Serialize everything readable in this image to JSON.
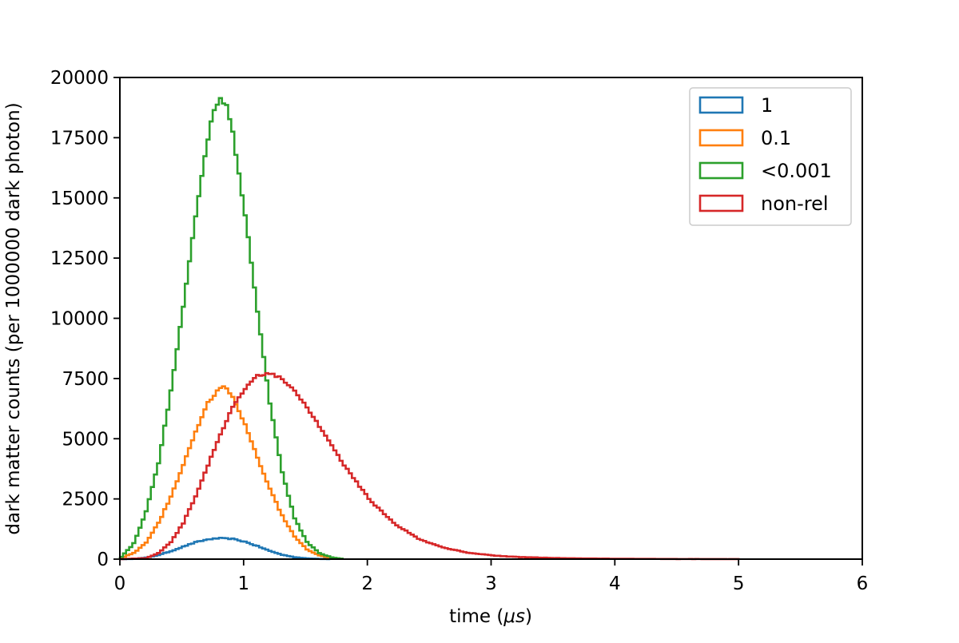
{
  "chart_data": {
    "type": "line",
    "title": "",
    "xlabel": "time (",
    "xlabel_unit": "μs",
    "xlabel_close": ")",
    "ylabel": "dark matter counts (per 1000000 dark photon)",
    "xlim": [
      0,
      6
    ],
    "ylim": [
      0,
      20000
    ],
    "xticks": [
      0,
      1,
      2,
      3,
      4,
      5,
      6
    ],
    "yticks": [
      0,
      2500,
      5000,
      7500,
      10000,
      12500,
      15000,
      17500,
      20000
    ],
    "grid": false,
    "legend_position": "top-right",
    "series": [
      {
        "name": "1",
        "color": "#1f77b4",
        "x": [
          0.0,
          0.1,
          0.2,
          0.3,
          0.4,
          0.5,
          0.6,
          0.7,
          0.8,
          0.9,
          1.0,
          1.1,
          1.2,
          1.3,
          1.4,
          1.5,
          1.6,
          1.7
        ],
        "y": [
          0,
          10,
          60,
          170,
          330,
          520,
          700,
          820,
          870,
          840,
          720,
          540,
          340,
          180,
          80,
          30,
          10,
          0
        ]
      },
      {
        "name": "0.1",
        "color": "#ff7f0e",
        "x": [
          0.0,
          0.1,
          0.2,
          0.3,
          0.4,
          0.5,
          0.6,
          0.7,
          0.8,
          0.85,
          0.9,
          1.0,
          1.1,
          1.2,
          1.3,
          1.4,
          1.5,
          1.6,
          1.7,
          1.8
        ],
        "y": [
          60,
          250,
          700,
          1500,
          2600,
          3900,
          5300,
          6500,
          7150,
          7100,
          6700,
          5600,
          4200,
          2900,
          1800,
          950,
          400,
          150,
          40,
          0
        ]
      },
      {
        "name": "<0.001",
        "color": "#2ca02c",
        "x": [
          0.0,
          0.1,
          0.2,
          0.3,
          0.4,
          0.5,
          0.6,
          0.7,
          0.75,
          0.8,
          0.85,
          0.9,
          1.0,
          1.1,
          1.2,
          1.3,
          1.4,
          1.5,
          1.6,
          1.7,
          1.8
        ],
        "y": [
          100,
          650,
          2000,
          4000,
          7000,
          10500,
          14300,
          17500,
          18700,
          19200,
          18800,
          17700,
          14300,
          10300,
          6500,
          3600,
          1700,
          700,
          250,
          70,
          0
        ]
      },
      {
        "name": "non-rel",
        "color": "#d62728",
        "x": [
          0.0,
          0.2,
          0.3,
          0.4,
          0.5,
          0.6,
          0.7,
          0.8,
          0.9,
          1.0,
          1.1,
          1.2,
          1.3,
          1.4,
          1.5,
          1.6,
          1.7,
          1.8,
          1.9,
          2.0,
          2.2,
          2.4,
          2.6,
          2.8,
          3.0,
          3.2,
          3.5,
          4.0,
          4.5,
          5.0
        ],
        "y": [
          0,
          40,
          250,
          700,
          1500,
          2600,
          3900,
          5200,
          6300,
          7100,
          7600,
          7700,
          7500,
          7000,
          6300,
          5500,
          4700,
          3900,
          3200,
          2500,
          1500,
          850,
          480,
          270,
          150,
          90,
          45,
          15,
          5,
          0
        ]
      }
    ]
  }
}
